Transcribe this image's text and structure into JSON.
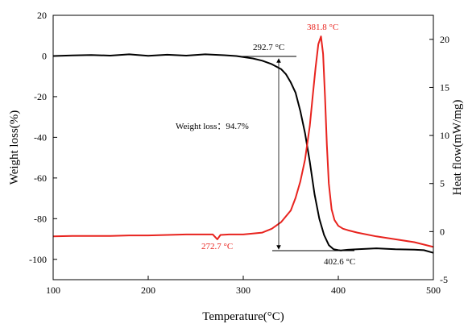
{
  "chart_data": {
    "type": "line",
    "xlabel": "Temperature(°C)",
    "ylabel_left": "Weight loss(%)",
    "ylabel_right": "Heat flow(mW/mg)",
    "xlim": [
      100,
      500
    ],
    "ylim_left": [
      -110,
      20
    ],
    "ylim_right": [
      -5,
      22.5
    ],
    "x_ticks": [
      100,
      200,
      300,
      400,
      500
    ],
    "y_left_ticks": [
      -100,
      -80,
      -60,
      -40,
      -20,
      0,
      20
    ],
    "y_right_ticks": [
      -5,
      0,
      5,
      10,
      15,
      20
    ],
    "colors": {
      "weight": "#000000",
      "heat": "#e8231e"
    },
    "series": [
      {
        "axis": "left",
        "color": "#000000",
        "x": [
          100,
          120,
          140,
          160,
          180,
          200,
          220,
          240,
          260,
          280,
          292.7,
          310,
          320,
          330,
          340,
          345,
          350,
          355,
          360,
          365,
          370,
          375,
          380,
          385,
          390,
          395,
          400,
          402.6,
          410,
          420,
          440,
          460,
          480,
          490,
          500
        ],
        "y": [
          0,
          0.3,
          0.5,
          0.2,
          0.8,
          0.1,
          0.6,
          0.2,
          0.8,
          0.4,
          0.0,
          -1.2,
          -2.3,
          -4.0,
          -6.5,
          -9,
          -13,
          -18,
          -27,
          -38,
          -52,
          -68,
          -80,
          -88,
          -93,
          -95,
          -95.5,
          -95.6,
          -95.3,
          -95.0,
          -94.6,
          -95.0,
          -95.2,
          -95.5,
          -96.8
        ]
      },
      {
        "axis": "right",
        "color": "#e8231e",
        "x": [
          100,
          120,
          140,
          160,
          180,
          200,
          220,
          240,
          260,
          268,
          272.7,
          276,
          285,
          300,
          320,
          330,
          340,
          350,
          355,
          360,
          365,
          370,
          373,
          376,
          379,
          381.8,
          384,
          386,
          388,
          390,
          393,
          396,
          400,
          405,
          410,
          420,
          440,
          460,
          480,
          500
        ],
        "y": [
          -0.5,
          -0.45,
          -0.45,
          -0.45,
          -0.4,
          -0.4,
          -0.35,
          -0.3,
          -0.3,
          -0.3,
          -0.8,
          -0.35,
          -0.3,
          -0.3,
          -0.1,
          0.3,
          1.0,
          2.2,
          3.5,
          5.2,
          7.5,
          11,
          14,
          17,
          19.5,
          20.3,
          18.5,
          14,
          9,
          5,
          2.3,
          1.2,
          0.6,
          0.3,
          0.15,
          -0.1,
          -0.5,
          -0.8,
          -1.1,
          -1.6
        ]
      }
    ],
    "annotations": [
      {
        "text": "292.7 °C",
        "color": "#000000"
      },
      {
        "text": "381.8 °C",
        "color": "#e8231e"
      },
      {
        "text": "272.7 °C",
        "color": "#e8231e"
      },
      {
        "text": "402.6 °C",
        "color": "#000000"
      },
      {
        "text": "Weight loss：94.7%",
        "color": "#000000"
      }
    ]
  }
}
